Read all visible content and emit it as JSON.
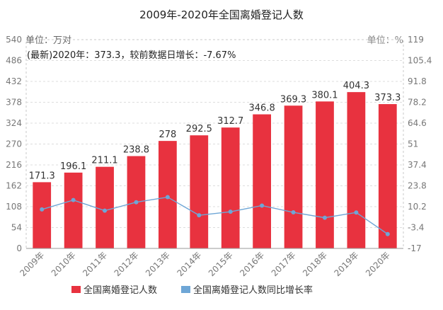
{
  "chart_data": {
    "type": "bar",
    "title": "2009年-2020年全国离婚登记人数",
    "left_unit_label": "单位：万对",
    "right_unit_label": "单位：%",
    "annotation": "(最新)2020年：373.3，较前数据日增长：-7.67%",
    "categories": [
      "2009年",
      "2010年",
      "2011年",
      "2012年",
      "2013年",
      "2014年",
      "2015年",
      "2016年",
      "2017年",
      "2018年",
      "2019年",
      "2020年"
    ],
    "y_left_ticks": [
      "0",
      "54",
      "108",
      "162",
      "216",
      "270",
      "324",
      "378",
      "432",
      "486",
      "540"
    ],
    "y_right_ticks": [
      "-17",
      "-3.4",
      "10.2",
      "23.8",
      "37.4",
      "51",
      "64.6",
      "78.2",
      "91.8",
      "105.4",
      "119"
    ],
    "ylim_left": [
      0,
      540
    ],
    "ylim_right": [
      -17,
      119
    ],
    "series": [
      {
        "name": "全国离婚登记人数",
        "kind": "bar",
        "axis": "left",
        "color": "#e8323f",
        "values": [
          171.3,
          196.1,
          211.1,
          238.8,
          278,
          292.5,
          312.7,
          346.8,
          369.3,
          380.1,
          404.3,
          373.3
        ],
        "labels": [
          "171.3",
          "196.1",
          "211.1",
          "238.8",
          "278",
          "292.5",
          "312.7",
          "346.8",
          "369.3",
          "380.1",
          "404.3",
          "373.3"
        ]
      },
      {
        "name": "全国离婚登记人数同比增长率",
        "kind": "line",
        "axis": "right",
        "color": "#6ea6d6",
        "values": [
          8.4,
          14.5,
          7.6,
          13.1,
          16.4,
          4.6,
          6.9,
          10.9,
          6.5,
          3.0,
          6.4,
          -7.67
        ]
      }
    ],
    "legend_position": "bottom"
  }
}
